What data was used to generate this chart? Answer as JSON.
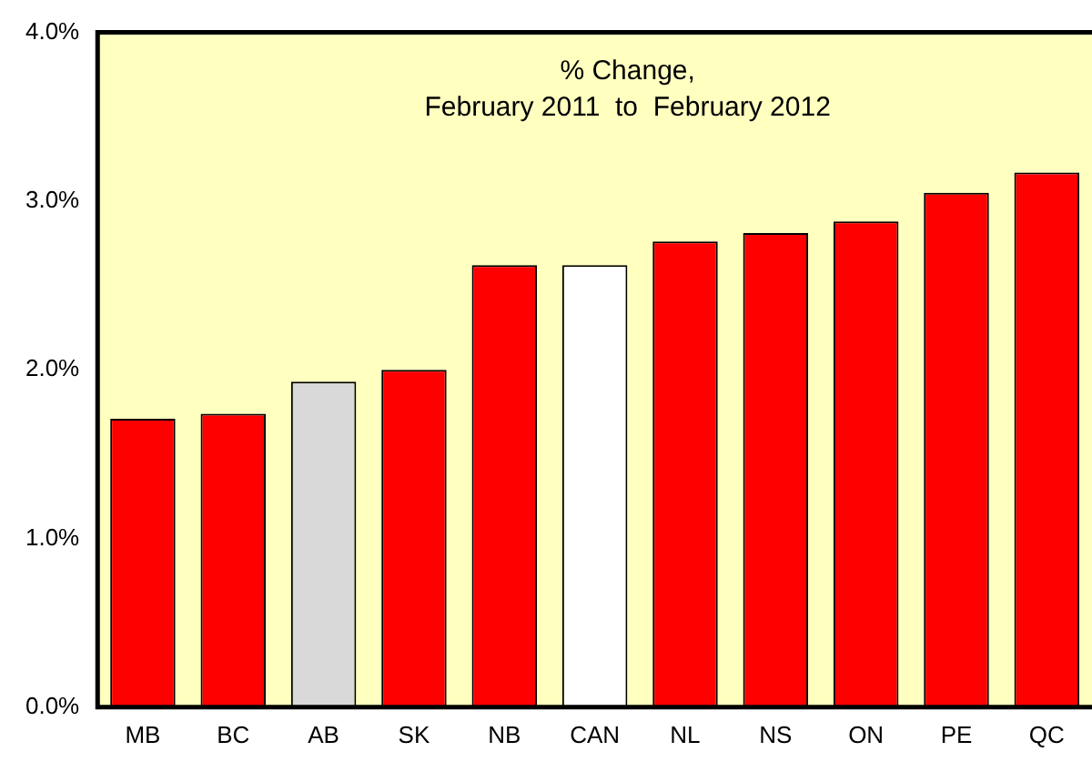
{
  "chart_data": {
    "type": "bar",
    "categories": [
      "MB",
      "BC",
      "AB",
      "SK",
      "NB",
      "CAN",
      "NL",
      "NS",
      "ON",
      "PE",
      "QC"
    ],
    "values": [
      1.71,
      1.74,
      1.93,
      2.0,
      2.62,
      2.62,
      2.76,
      2.81,
      2.88,
      3.05,
      3.17
    ],
    "colors": [
      "#ff0000",
      "#ff0000",
      "#d9d9d9",
      "#ff0000",
      "#ff0000",
      "#ffffff",
      "#ff0000",
      "#ff0000",
      "#ff0000",
      "#ff0000",
      "#ff0000"
    ],
    "ylim": [
      0,
      4
    ],
    "yticks": [
      {
        "value": 0,
        "label": "0.0%"
      },
      {
        "value": 1,
        "label": "1.0%"
      },
      {
        "value": 2,
        "label": "2.0%"
      },
      {
        "value": 3,
        "label": "3.0%"
      },
      {
        "value": 4,
        "label": "4.0%"
      }
    ],
    "annotations": [
      "% Change,",
      "February 2011  to  February 2012"
    ],
    "grid": false,
    "legend": false
  }
}
